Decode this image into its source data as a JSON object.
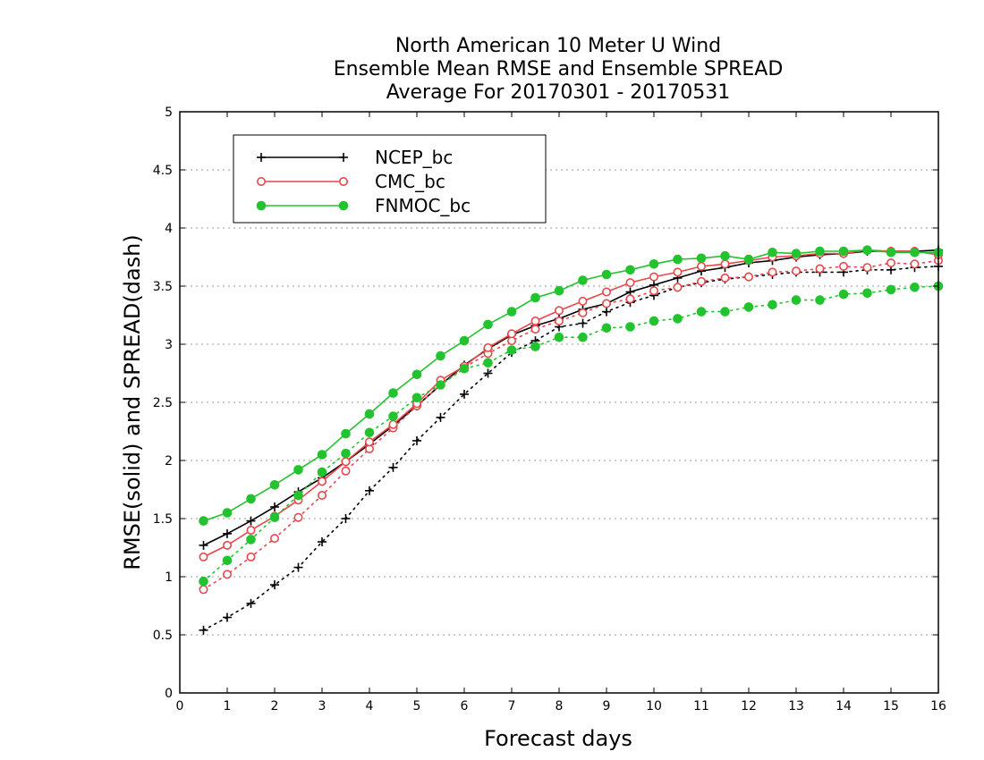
{
  "chart_data": {
    "type": "line",
    "title": [
      "North American 10 Meter U Wind",
      "Ensemble Mean RMSE and Ensemble SPREAD",
      "Average For 20170301 - 20170531"
    ],
    "xlabel": "Forecast days",
    "ylabel": "RMSE(solid) and SPREAD(dash)",
    "xlim": [
      0,
      16
    ],
    "ylim": [
      0,
      5
    ],
    "xticks": [
      0,
      1,
      2,
      3,
      4,
      5,
      6,
      7,
      8,
      9,
      10,
      11,
      12,
      13,
      14,
      15,
      16
    ],
    "yticks": [
      0,
      0.5,
      1,
      1.5,
      2,
      2.5,
      3,
      3.5,
      4,
      4.5,
      5
    ],
    "grid": "horizontal-dotted",
    "legend_position": "top-left",
    "x": [
      0.5,
      1,
      1.5,
      2,
      2.5,
      3,
      3.5,
      4,
      4.5,
      5,
      5.5,
      6,
      6.5,
      7,
      7.5,
      8,
      8.5,
      9,
      9.5,
      10,
      10.5,
      11,
      11.5,
      12,
      12.5,
      13,
      13.5,
      14,
      14.5,
      15,
      15.5,
      16
    ],
    "series": [
      {
        "name": "NCEP_bc",
        "color": "#000000",
        "marker": "plus",
        "rmse": [
          1.27,
          1.37,
          1.48,
          1.6,
          1.73,
          1.85,
          1.99,
          2.14,
          2.3,
          2.47,
          2.65,
          2.82,
          2.96,
          3.08,
          3.16,
          3.22,
          3.3,
          3.35,
          3.45,
          3.51,
          3.57,
          3.63,
          3.66,
          3.7,
          3.72,
          3.75,
          3.77,
          3.78,
          3.8,
          3.8,
          3.8,
          3.81
        ],
        "spread": [
          0.54,
          0.65,
          0.77,
          0.93,
          1.08,
          1.3,
          1.5,
          1.74,
          1.94,
          2.17,
          2.37,
          2.57,
          2.75,
          2.93,
          3.03,
          3.15,
          3.18,
          3.28,
          3.36,
          3.42,
          3.49,
          3.53,
          3.56,
          3.58,
          3.6,
          3.62,
          3.62,
          3.62,
          3.64,
          3.64,
          3.66,
          3.67
        ]
      },
      {
        "name": "CMC_bc",
        "color": "#e8474b",
        "marker": "open-circle",
        "rmse": [
          1.17,
          1.27,
          1.4,
          1.52,
          1.66,
          1.82,
          1.99,
          2.16,
          2.31,
          2.49,
          2.69,
          2.81,
          2.97,
          3.09,
          3.2,
          3.29,
          3.37,
          3.45,
          3.53,
          3.58,
          3.62,
          3.67,
          3.69,
          3.72,
          3.75,
          3.76,
          3.78,
          3.78,
          3.81,
          3.8,
          3.8,
          3.77
        ],
        "spread": [
          0.89,
          1.02,
          1.17,
          1.33,
          1.51,
          1.7,
          1.91,
          2.1,
          2.28,
          2.47,
          2.65,
          2.8,
          2.92,
          3.03,
          3.13,
          3.2,
          3.27,
          3.35,
          3.39,
          3.46,
          3.49,
          3.54,
          3.57,
          3.58,
          3.62,
          3.63,
          3.65,
          3.67,
          3.66,
          3.7,
          3.69,
          3.72
        ]
      },
      {
        "name": "FNMOC_bc",
        "color": "#22c32e",
        "marker": "filled-circle",
        "rmse": [
          1.48,
          1.55,
          1.67,
          1.79,
          1.92,
          2.05,
          2.23,
          2.4,
          2.58,
          2.74,
          2.9,
          3.03,
          3.17,
          3.28,
          3.4,
          3.46,
          3.55,
          3.6,
          3.64,
          3.69,
          3.73,
          3.74,
          3.76,
          3.73,
          3.79,
          3.78,
          3.8,
          3.8,
          3.81,
          3.79,
          3.79,
          3.79
        ],
        "spread": [
          0.96,
          1.14,
          1.32,
          1.51,
          1.7,
          1.9,
          2.06,
          2.24,
          2.38,
          2.54,
          2.65,
          2.79,
          2.84,
          2.95,
          2.98,
          3.06,
          3.06,
          3.14,
          3.15,
          3.2,
          3.22,
          3.28,
          3.28,
          3.32,
          3.34,
          3.38,
          3.38,
          3.43,
          3.44,
          3.47,
          3.49,
          3.5
        ]
      }
    ]
  }
}
